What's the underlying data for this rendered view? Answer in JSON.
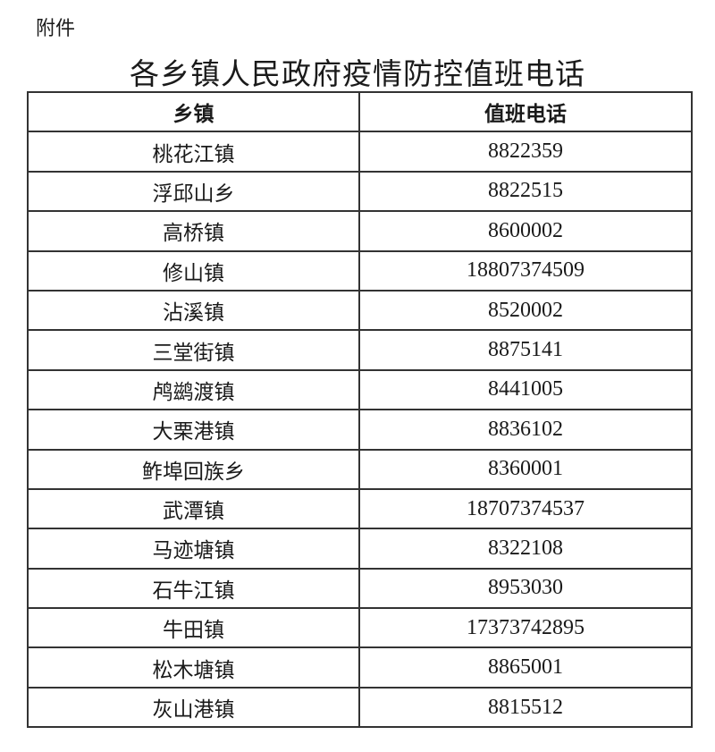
{
  "attachment_label": "附件",
  "title": "各乡镇人民政府疫情防控值班电话",
  "table": {
    "headers": [
      "乡镇",
      "值班电话"
    ],
    "rows": [
      [
        "桃花江镇",
        "8822359"
      ],
      [
        "浮邱山乡",
        "8822515"
      ],
      [
        "高桥镇",
        "8600002"
      ],
      [
        "修山镇",
        "18807374509"
      ],
      [
        "沾溪镇",
        "8520002"
      ],
      [
        "三堂街镇",
        "8875141"
      ],
      [
        "鸬鹚渡镇",
        "8441005"
      ],
      [
        "大栗港镇",
        "8836102"
      ],
      [
        "鲊埠回族乡",
        "8360001"
      ],
      [
        "武潭镇",
        "18707374537"
      ],
      [
        "马迹塘镇",
        "8322108"
      ],
      [
        "石牛江镇",
        "8953030"
      ],
      [
        "牛田镇",
        "17373742895"
      ],
      [
        "松木塘镇",
        "8865001"
      ],
      [
        "灰山港镇",
        "8815512"
      ]
    ]
  }
}
